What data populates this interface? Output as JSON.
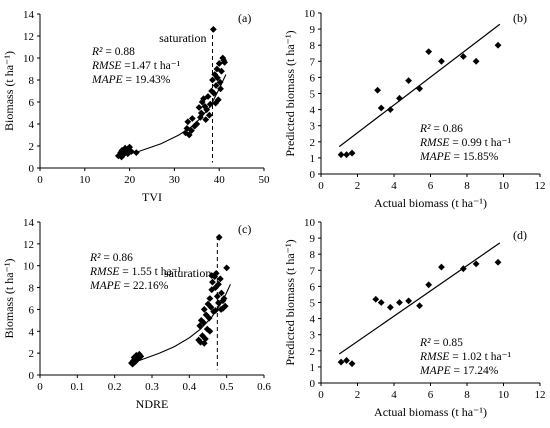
{
  "chart_data": [
    {
      "type": "scatter",
      "panel_label": "(a)",
      "xlabel": "TVI",
      "ylabel": "Biomass (t ha⁻¹)",
      "xlim": [
        0,
        50
      ],
      "ylim": [
        0,
        14
      ],
      "xticks": [
        "0",
        "10",
        "20",
        "30",
        "40",
        "50"
      ],
      "yticks": [
        "0",
        "2",
        "4",
        "6",
        "8",
        "10",
        "12",
        "14"
      ],
      "annotation": "saturation",
      "saturation_x": 38.5,
      "stats": [
        {
          "name": "R²",
          "value": " = 0.88"
        },
        {
          "name": "RMSE",
          "value": " =1.47 t ha⁻¹"
        },
        {
          "name": "MAPE",
          "value": " = 19.43%"
        }
      ],
      "fit_curve": {
        "x": [
          17,
          22,
          27,
          31,
          34,
          36,
          38,
          40,
          41.5
        ],
        "y": [
          1.0,
          1.5,
          2.2,
          3.0,
          3.8,
          4.6,
          5.6,
          7.2,
          8.5
        ]
      },
      "points": {
        "x": [
          17.5,
          18,
          18.3,
          18.6,
          19,
          19.3,
          19.6,
          20,
          20.4,
          21.5,
          18.2,
          19.8,
          32.5,
          32.8,
          33,
          33.3,
          33.8,
          34,
          34.5,
          35,
          35.5,
          36,
          36.2,
          36.5,
          37,
          37.2,
          37.5,
          38,
          38.3,
          38.5,
          38.8,
          39,
          39.3,
          39.5,
          39.8,
          40,
          40.2,
          40.5,
          40.8,
          41,
          37.8,
          39.2,
          40.3,
          36.8,
          35.8,
          38.7,
          39.6,
          41.2
        ],
        "y": [
          1.1,
          1.4,
          1.6,
          1.2,
          1.8,
          1.5,
          1.3,
          1.9,
          1.5,
          1.4,
          1.0,
          1.7,
          3.2,
          3.6,
          4.2,
          3.0,
          3.4,
          4.5,
          3.8,
          4.0,
          5.5,
          5.0,
          6.0,
          6.3,
          4.4,
          5.3,
          6.5,
          5.8,
          7.0,
          8.0,
          6.8,
          8.5,
          7.5,
          9.0,
          6.2,
          9.5,
          7.8,
          8.8,
          10.0,
          9.8,
          4.8,
          5.9,
          7.2,
          5.6,
          4.6,
          12.6,
          8.2,
          9.6
        ]
      }
    },
    {
      "type": "scatter",
      "panel_label": "(b)",
      "xlabel": "Actual biomass (t ha⁻¹)",
      "ylabel": "Predicted biomass (t ha⁻¹)",
      "xlim": [
        0,
        12
      ],
      "ylim": [
        0,
        10
      ],
      "xticks": [
        "0",
        "2",
        "4",
        "6",
        "8",
        "10",
        "12"
      ],
      "yticks": [
        "0",
        "1",
        "2",
        "3",
        "4",
        "5",
        "6",
        "7",
        "8",
        "9",
        "10"
      ],
      "stats": [
        {
          "name": "R²",
          "value": " = 0.86"
        },
        {
          "name": "RMSE",
          "value": " = 0.99 t ha⁻¹"
        },
        {
          "name": "MAPE",
          "value": " = 15.85%"
        }
      ],
      "fit_line": {
        "x": [
          1.0,
          9.8
        ],
        "y": [
          1.7,
          9.3
        ]
      },
      "points": {
        "x": [
          1.1,
          1.4,
          1.7,
          3.1,
          3.3,
          3.8,
          4.3,
          4.8,
          5.4,
          5.9,
          6.6,
          7.8,
          8.5,
          9.7
        ],
        "y": [
          1.2,
          1.2,
          1.3,
          5.2,
          4.1,
          4.0,
          4.7,
          5.8,
          5.3,
          7.6,
          7.0,
          7.3,
          7.0,
          8.0
        ]
      }
    },
    {
      "type": "scatter",
      "panel_label": "(c)",
      "xlabel": "NDRE",
      "ylabel": "Biomass (t ha⁻¹)",
      "xlim": [
        0,
        0.6
      ],
      "ylim": [
        0,
        14
      ],
      "xticks": [
        "0",
        "0.1",
        "0.2",
        "0.3",
        "0.4",
        "0.5",
        "0.6"
      ],
      "yticks": [
        "0",
        "2",
        "4",
        "6",
        "8",
        "10",
        "12",
        "14"
      ],
      "annotation": "saturation",
      "saturation_x": 0.475,
      "stats": [
        {
          "name": "R²",
          "value": " = 0.86"
        },
        {
          "name": "RMSE",
          "value": " = 1.55 t ha⁻¹"
        },
        {
          "name": "MAPE",
          "value": " = 22.16%"
        }
      ],
      "fit_curve": {
        "x": [
          0.24,
          0.28,
          0.32,
          0.36,
          0.4,
          0.43,
          0.46,
          0.49,
          0.51
        ],
        "y": [
          1.0,
          1.5,
          2.0,
          2.6,
          3.4,
          4.2,
          5.3,
          6.8,
          8.3
        ]
      },
      "points": {
        "x": [
          0.245,
          0.25,
          0.252,
          0.255,
          0.258,
          0.26,
          0.263,
          0.266,
          0.27,
          0.248,
          0.425,
          0.428,
          0.43,
          0.432,
          0.435,
          0.438,
          0.44,
          0.443,
          0.445,
          0.448,
          0.45,
          0.453,
          0.455,
          0.458,
          0.46,
          0.462,
          0.465,
          0.468,
          0.47,
          0.472,
          0.475,
          0.478,
          0.48,
          0.483,
          0.486,
          0.49,
          0.493,
          0.496,
          0.5,
          0.44,
          0.455,
          0.47,
          0.485,
          0.46,
          0.478,
          0.49
        ],
        "y": [
          1.1,
          1.3,
          1.6,
          1.2,
          1.8,
          1.4,
          1.5,
          1.9,
          1.7,
          1.0,
          3.2,
          4.5,
          3.0,
          5.0,
          3.6,
          4.8,
          6.0,
          3.3,
          5.5,
          4.2,
          6.5,
          5.2,
          7.0,
          6.2,
          7.8,
          8.5,
          5.8,
          9.0,
          8.0,
          9.3,
          7.2,
          6.6,
          12.6,
          8.8,
          7.5,
          6.8,
          7.0,
          6.3,
          9.8,
          2.9,
          4.0,
          5.9,
          6.0,
          9.1,
          8.3,
          6.1
        ]
      }
    },
    {
      "type": "scatter",
      "panel_label": "(d)",
      "xlabel": "Actual biomass (t ha⁻¹)",
      "ylabel": "Predicted biomass (t ha⁻¹)",
      "xlim": [
        0,
        12
      ],
      "ylim": [
        0,
        10
      ],
      "xticks": [
        "0",
        "2",
        "4",
        "6",
        "8",
        "10",
        "12"
      ],
      "yticks": [
        "0",
        "1",
        "2",
        "3",
        "4",
        "5",
        "6",
        "7",
        "8",
        "9",
        "10"
      ],
      "stats": [
        {
          "name": "R²",
          "value": " = 0.85"
        },
        {
          "name": "RMSE",
          "value": " = 1.02 t ha⁻¹"
        },
        {
          "name": "MAPE",
          "value": " = 17.24%"
        }
      ],
      "fit_line": {
        "x": [
          1.0,
          9.8
        ],
        "y": [
          1.8,
          8.7
        ]
      },
      "points": {
        "x": [
          1.1,
          1.4,
          1.7,
          3.0,
          3.3,
          3.8,
          4.3,
          4.8,
          5.4,
          5.9,
          6.6,
          7.8,
          8.5,
          9.7
        ],
        "y": [
          1.3,
          1.4,
          1.2,
          5.2,
          5.0,
          4.7,
          5.0,
          5.1,
          4.8,
          6.1,
          7.2,
          7.1,
          7.4,
          7.5
        ]
      }
    }
  ]
}
